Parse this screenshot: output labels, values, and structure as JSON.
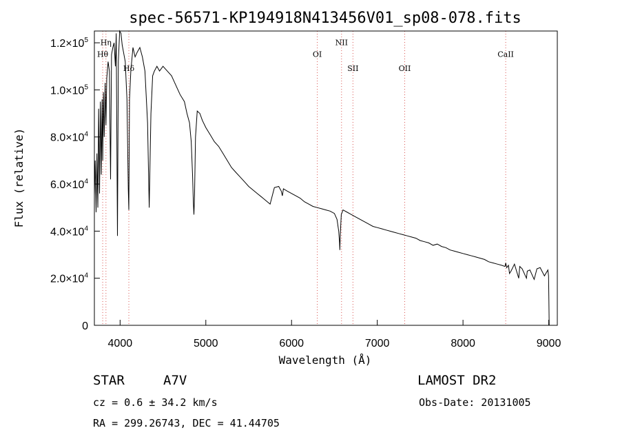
{
  "chart_data": {
    "type": "line",
    "title": "spec-56571-KP194918N413456V01_sp08-078.fits",
    "xlabel": "Wavelength (Å)",
    "ylabel": "Flux (relative)",
    "xlim": [
      3700,
      9100
    ],
    "ylim": [
      0,
      125000
    ],
    "x_ticks": [
      4000,
      5000,
      6000,
      7000,
      8000,
      9000
    ],
    "x_tick_labels": [
      "4000",
      "5000",
      "6000",
      "7000",
      "8000",
      "9000"
    ],
    "y_ticks": [
      0,
      20000,
      40000,
      60000,
      80000,
      100000,
      120000
    ],
    "y_tick_labels": [
      {
        "mant": "0",
        "exp": ""
      },
      {
        "mant": "2.0×10",
        "exp": "4"
      },
      {
        "mant": "4.0×10",
        "exp": "4"
      },
      {
        "mant": "6.0×10",
        "exp": "4"
      },
      {
        "mant": "8.0×10",
        "exp": "4"
      },
      {
        "mant": "1.0×10",
        "exp": "5"
      },
      {
        "mant": "1.2×10",
        "exp": "5"
      }
    ],
    "spectral_lines": [
      {
        "name": "Hη",
        "wavelength": 3835,
        "label_flux": 119000
      },
      {
        "name": "Hθ",
        "wavelength": 3797,
        "label_flux": 114000
      },
      {
        "name": "Hδ",
        "wavelength": 4102,
        "label_flux": 108000
      },
      {
        "name": "OI",
        "wavelength": 6300,
        "label_flux": 114000
      },
      {
        "name": "NII",
        "wavelength": 6583,
        "label_flux": 119000
      },
      {
        "name": "SII",
        "wavelength": 6716,
        "label_flux": 108000
      },
      {
        "name": "OII",
        "wavelength": 7320,
        "label_flux": 108000
      },
      {
        "name": "CaII",
        "wavelength": 8498,
        "label_flux": 114000
      }
    ],
    "series": [
      {
        "name": "spectrum",
        "x": [
          3700,
          3710,
          3720,
          3730,
          3740,
          3750,
          3760,
          3770,
          3780,
          3790,
          3797,
          3805,
          3815,
          3825,
          3835,
          3845,
          3860,
          3875,
          3889,
          3900,
          3915,
          3930,
          3945,
          3955,
          3969,
          3980,
          3995,
          4010,
          4025,
          4040,
          4060,
          4080,
          4095,
          4102,
          4110,
          4125,
          4150,
          4175,
          4200,
          4230,
          4260,
          4290,
          4320,
          4340,
          4360,
          4380,
          4400,
          4430,
          4460,
          4500,
          4550,
          4600,
          4650,
          4700,
          4750,
          4780,
          4810,
          4830,
          4845,
          4855,
          4861,
          4868,
          4880,
          4900,
          4930,
          4960,
          5000,
          5050,
          5100,
          5150,
          5200,
          5250,
          5300,
          5350,
          5400,
          5450,
          5500,
          5550,
          5600,
          5650,
          5700,
          5750,
          5800,
          5850,
          5880,
          5893,
          5905,
          5950,
          6000,
          6050,
          6100,
          6150,
          6200,
          6250,
          6300,
          6350,
          6400,
          6450,
          6500,
          6530,
          6550,
          6560,
          6563,
          6568,
          6580,
          6600,
          6650,
          6700,
          6750,
          6800,
          6850,
          6900,
          6950,
          7000,
          7050,
          7100,
          7150,
          7200,
          7250,
          7300,
          7350,
          7400,
          7450,
          7500,
          7550,
          7600,
          7650,
          7700,
          7750,
          7800,
          7850,
          7900,
          7950,
          8000,
          8050,
          8100,
          8150,
          8200,
          8250,
          8300,
          8350,
          8400,
          8450,
          8490,
          8498,
          8510,
          8530,
          8542,
          8560,
          8600,
          8650,
          8662,
          8690,
          8740,
          8750,
          8780,
          8830,
          8862,
          8900,
          8950,
          8990,
          8998,
          9002,
          9005
        ],
        "values": [
          55000,
          70000,
          48000,
          73000,
          50000,
          92000,
          56000,
          95000,
          64000,
          96000,
          70000,
          99000,
          80000,
          103000,
          85000,
          105000,
          112000,
          108000,
          62000,
          115000,
          118000,
          120000,
          110000,
          124000,
          38000,
          112000,
          126000,
          124000,
          119000,
          116000,
          112000,
          96000,
          58000,
          49000,
          96000,
          108000,
          118000,
          114000,
          116000,
          118000,
          114000,
          108000,
          86000,
          50000,
          90000,
          106000,
          108000,
          110000,
          108000,
          110000,
          108000,
          106000,
          102000,
          98000,
          95000,
          90000,
          86000,
          78000,
          64000,
          52000,
          47000,
          55000,
          80000,
          91000,
          90000,
          87000,
          84000,
          81000,
          78000,
          76000,
          73000,
          70000,
          67000,
          65000,
          63000,
          61000,
          59000,
          57500,
          56000,
          54500,
          53000,
          51500,
          58500,
          59000,
          57000,
          55000,
          58000,
          57000,
          56000,
          55000,
          54000,
          52500,
          51500,
          50500,
          50000,
          49500,
          49000,
          48500,
          47500,
          45000,
          40000,
          35000,
          32000,
          38000,
          47000,
          49000,
          48000,
          47000,
          46000,
          45000,
          44000,
          43000,
          42000,
          41500,
          41000,
          40500,
          40000,
          39500,
          39000,
          38500,
          38000,
          37500,
          37000,
          36000,
          35500,
          35000,
          34000,
          34500,
          33500,
          33000,
          32000,
          31500,
          31000,
          30500,
          30000,
          29500,
          29000,
          28500,
          28000,
          27000,
          26500,
          26000,
          25500,
          25000,
          26500,
          24500,
          25500,
          22000,
          23000,
          26000,
          20000,
          25000,
          24000,
          20000,
          23000,
          23500,
          19500,
          24000,
          24500,
          21000,
          23500,
          21000,
          10000,
          0
        ]
      }
    ],
    "info": {
      "class_label": "STAR",
      "subclass": "A7V",
      "survey": "LAMOST DR2",
      "cz": "cz = 0.6 ± 34.2 km/s",
      "obs_date": "Obs-Date: 20131005",
      "coords": "RA = 299.26743, DEC =  41.44705"
    },
    "colors": {
      "spectrum": "#000000",
      "marker_lines": "#d9534f",
      "axes": "#000000"
    }
  }
}
